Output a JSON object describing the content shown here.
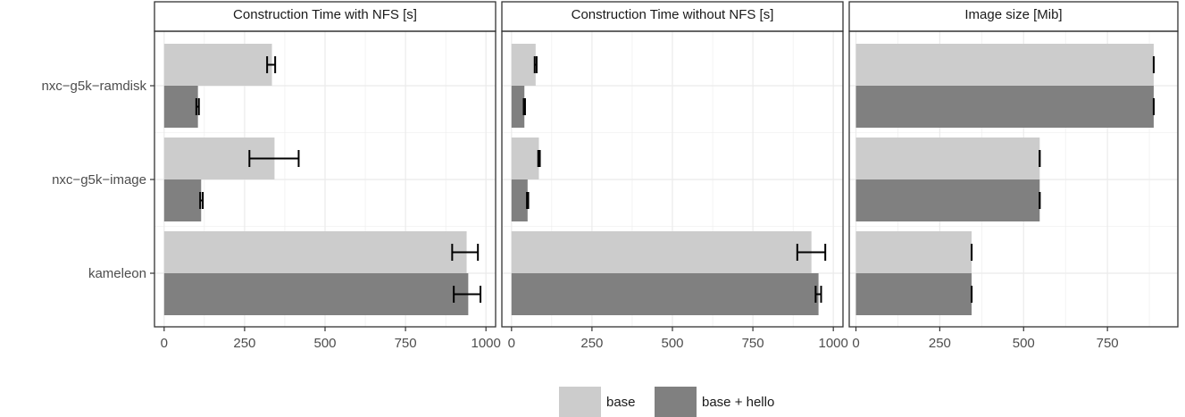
{
  "chart_data": {
    "type": "bar",
    "orientation": "horizontal",
    "categories": [
      "nxc−g5k−ramdisk",
      "nxc−g5k−image",
      "kameleon"
    ],
    "series_names": [
      "base",
      "base + hello"
    ],
    "colors": {
      "base": "#cccccc",
      "base + hello": "#808080",
      "error_bar": "#000000",
      "grid": "#ebebeb",
      "border": "#333333"
    },
    "legend_position": "bottom",
    "grid": true,
    "facets": [
      {
        "title": "Construction Time with NFS [s]",
        "xlim": [
          -30,
          1030
        ],
        "xticks": [
          0,
          250,
          500,
          750,
          1000
        ],
        "xtick_labels": [
          "0",
          "250",
          "500",
          "750",
          "1000"
        ],
        "series": [
          {
            "name": "base",
            "values": [
              335,
              343,
              940
            ],
            "err_low": [
              320,
              265,
              895
            ],
            "err_high": [
              345,
              418,
              975
            ]
          },
          {
            "name": "base + hello",
            "values": [
              105,
              115,
              945
            ],
            "err_low": [
              100,
              112,
              900
            ],
            "err_high": [
              108,
              120,
              983
            ]
          }
        ]
      },
      {
        "title": "Construction Time without NFS [s]",
        "xlim": [
          -30,
          1030
        ],
        "xticks": [
          0,
          250,
          500,
          750,
          1000
        ],
        "xtick_labels": [
          "0",
          "250",
          "500",
          "750",
          "1000"
        ],
        "series": [
          {
            "name": "base",
            "values": [
              75,
              85,
              932
            ],
            "err_low": [
              72,
              83,
              888
            ],
            "err_high": [
              78,
              88,
              975
            ]
          },
          {
            "name": "base + hello",
            "values": [
              40,
              50,
              954
            ],
            "err_low": [
              38,
              48,
              945
            ],
            "err_high": [
              42,
              52,
              962
            ]
          }
        ]
      },
      {
        "title": "Image size [Mib]",
        "xlim": [
          -20,
          960
        ],
        "xticks": [
          0,
          250,
          500,
          750
        ],
        "xtick_labels": [
          "0",
          "250",
          "500",
          "750"
        ],
        "series": [
          {
            "name": "base",
            "values": [
              888,
              548,
              345
            ],
            "err_low": [
              888,
              548,
              345
            ],
            "err_high": [
              888,
              548,
              345
            ]
          },
          {
            "name": "base + hello",
            "values": [
              888,
              548,
              345
            ],
            "err_low": [
              888,
              548,
              345
            ],
            "err_high": [
              888,
              548,
              345
            ]
          }
        ]
      }
    ]
  }
}
